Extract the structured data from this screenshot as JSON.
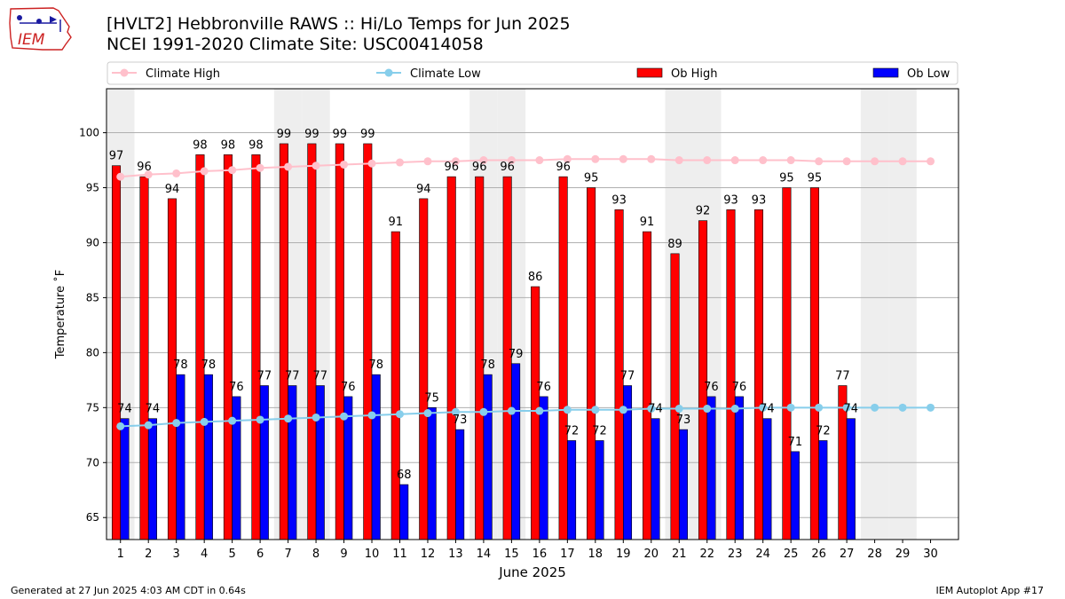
{
  "logo": {
    "text": "IEM",
    "color": "#cc2222"
  },
  "title_line1": "[HVLT2] Hebbronville RAWS :: Hi/Lo Temps for Jun 2025",
  "title_line2": "NCEI 1991-2020 Climate Site: USC00414058",
  "footer_left": "Generated at 27 Jun 2025 4:03 AM CDT in 0.64s",
  "footer_right": "IEM Autoplot App #17",
  "chart_data": {
    "type": "bar",
    "xlabel": "June 2025",
    "ylabel": "Temperature ˚F",
    "ylim": [
      63,
      104
    ],
    "yticks": [
      65,
      70,
      75,
      80,
      85,
      90,
      95,
      100
    ],
    "grid": true,
    "legend_placement": "top",
    "categories": [
      "1",
      "2",
      "3",
      "4",
      "5",
      "6",
      "7",
      "8",
      "9",
      "10",
      "11",
      "12",
      "13",
      "14",
      "15",
      "16",
      "17",
      "18",
      "19",
      "20",
      "21",
      "22",
      "23",
      "24",
      "25",
      "26",
      "27",
      "28",
      "29",
      "30"
    ],
    "weekend_shading_days": [
      1,
      7,
      8,
      14,
      15,
      21,
      22,
      28,
      29
    ],
    "series": [
      {
        "name": "Ob High",
        "kind": "bar",
        "color": "#ff0000",
        "values": [
          97,
          96,
          94,
          98,
          98,
          98,
          99,
          99,
          99,
          99,
          91,
          94,
          96,
          96,
          96,
          86,
          96,
          95,
          93,
          91,
          89,
          92,
          93,
          93,
          95,
          95,
          77,
          null,
          null,
          null
        ]
      },
      {
        "name": "Ob Low",
        "kind": "bar",
        "color": "#0000ff",
        "values": [
          74,
          74,
          78,
          78,
          76,
          77,
          77,
          77,
          76,
          78,
          68,
          75,
          73,
          78,
          79,
          76,
          72,
          72,
          77,
          74,
          73,
          76,
          76,
          74,
          71,
          72,
          74,
          null,
          null,
          null
        ]
      },
      {
        "name": "Climate High",
        "kind": "line",
        "color": "#ffc0cb",
        "values": [
          96.0,
          96.2,
          96.3,
          96.5,
          96.6,
          96.8,
          96.9,
          97.0,
          97.1,
          97.2,
          97.3,
          97.4,
          97.4,
          97.5,
          97.5,
          97.5,
          97.6,
          97.6,
          97.6,
          97.6,
          97.5,
          97.5,
          97.5,
          97.5,
          97.5,
          97.4,
          97.4,
          97.4,
          97.4,
          97.4
        ]
      },
      {
        "name": "Climate Low",
        "kind": "line",
        "color": "#87ceeb",
        "values": [
          73.3,
          73.4,
          73.6,
          73.7,
          73.8,
          73.9,
          74.0,
          74.1,
          74.2,
          74.3,
          74.4,
          74.5,
          74.6,
          74.6,
          74.7,
          74.7,
          74.8,
          74.8,
          74.8,
          74.9,
          74.9,
          74.9,
          74.9,
          75.0,
          75.0,
          75.0,
          75.0,
          75.0,
          75.0,
          75.0
        ]
      }
    ]
  }
}
